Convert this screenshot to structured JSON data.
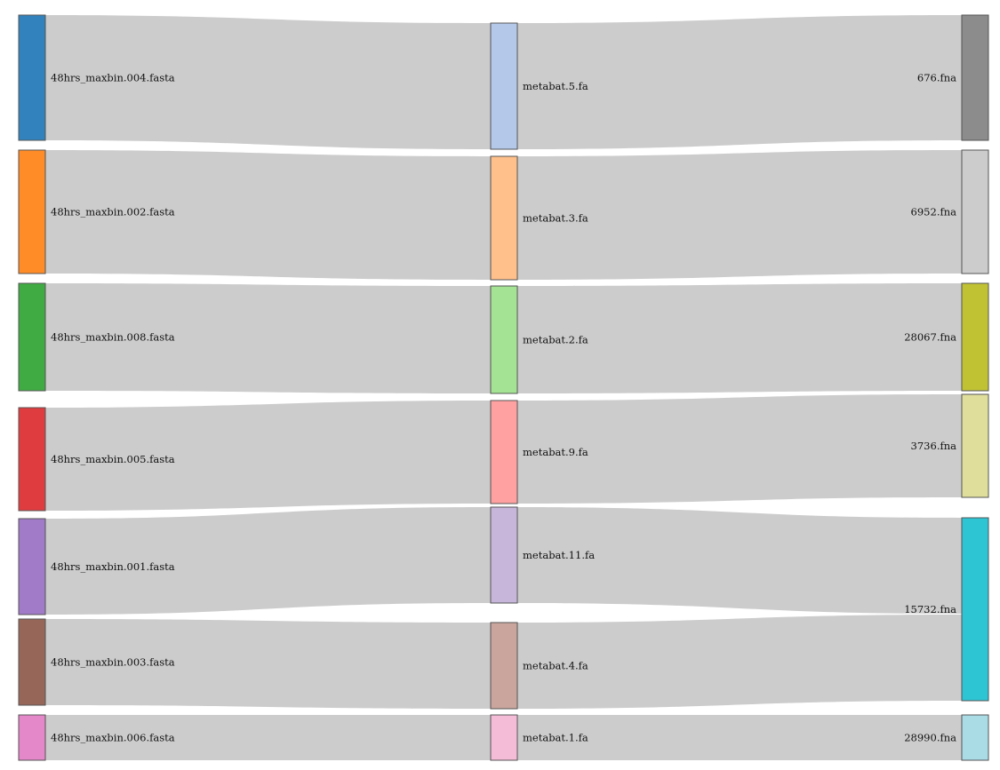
{
  "diagram": {
    "type": "sankey",
    "columns": [
      {
        "nodes": [
          {
            "id": "m4",
            "label": "48hrs_maxbin.004.fasta",
            "color": "#3182bd"
          },
          {
            "id": "m2",
            "label": "48hrs_maxbin.002.fasta",
            "color": "#ff8c26"
          },
          {
            "id": "m8",
            "label": "48hrs_maxbin.008.fasta",
            "color": "#41ab43"
          },
          {
            "id": "m5",
            "label": "48hrs_maxbin.005.fasta",
            "color": "#de3c3f"
          },
          {
            "id": "m1",
            "label": "48hrs_maxbin.001.fasta",
            "color": "#a17ac8"
          },
          {
            "id": "m3",
            "label": "48hrs_maxbin.003.fasta",
            "color": "#966659"
          },
          {
            "id": "m6",
            "label": "48hrs_maxbin.006.fasta",
            "color": "#e588c9"
          }
        ]
      },
      {
        "nodes": [
          {
            "id": "b5",
            "label": "metabat.5.fa",
            "color": "#b4c9ea"
          },
          {
            "id": "b3",
            "label": "metabat.3.fa",
            "color": "#ffc08b"
          },
          {
            "id": "b2",
            "label": "metabat.2.fa",
            "color": "#a3e393"
          },
          {
            "id": "b9",
            "label": "metabat.9.fa",
            "color": "#ffa1a1"
          },
          {
            "id": "b11",
            "label": "metabat.11.fa",
            "color": "#c8b6da"
          },
          {
            "id": "b4",
            "label": "metabat.4.fa",
            "color": "#c9a59d"
          },
          {
            "id": "b1",
            "label": "metabat.1.fa",
            "color": "#f5bcd7"
          }
        ]
      },
      {
        "nodes": [
          {
            "id": "f676",
            "label": "676.fna",
            "color": "#8c8c8c"
          },
          {
            "id": "f6952",
            "label": "6952.fna",
            "color": "#cccccc"
          },
          {
            "id": "f28067",
            "label": "28067.fna",
            "color": "#c1c233"
          },
          {
            "id": "f3736",
            "label": "3736.fna",
            "color": "#dfdf9b"
          },
          {
            "id": "f15732",
            "label": "15732.fna",
            "color": "#2dc4d4"
          },
          {
            "id": "f28990",
            "label": "28990.fna",
            "color": "#aadce6"
          }
        ]
      }
    ],
    "links": [
      {
        "source": "m4",
        "target": "b5"
      },
      {
        "source": "m2",
        "target": "b3"
      },
      {
        "source": "m8",
        "target": "b2"
      },
      {
        "source": "m5",
        "target": "b9"
      },
      {
        "source": "m1",
        "target": "b11"
      },
      {
        "source": "m3",
        "target": "b4"
      },
      {
        "source": "m6",
        "target": "b1"
      },
      {
        "source": "b5",
        "target": "f676"
      },
      {
        "source": "b3",
        "target": "f6952"
      },
      {
        "source": "b2",
        "target": "f28067"
      },
      {
        "source": "b9",
        "target": "f3736"
      },
      {
        "source": "b11",
        "target": "f15732"
      },
      {
        "source": "b4",
        "target": "f15732"
      },
      {
        "source": "b1",
        "target": "f28990"
      }
    ]
  }
}
